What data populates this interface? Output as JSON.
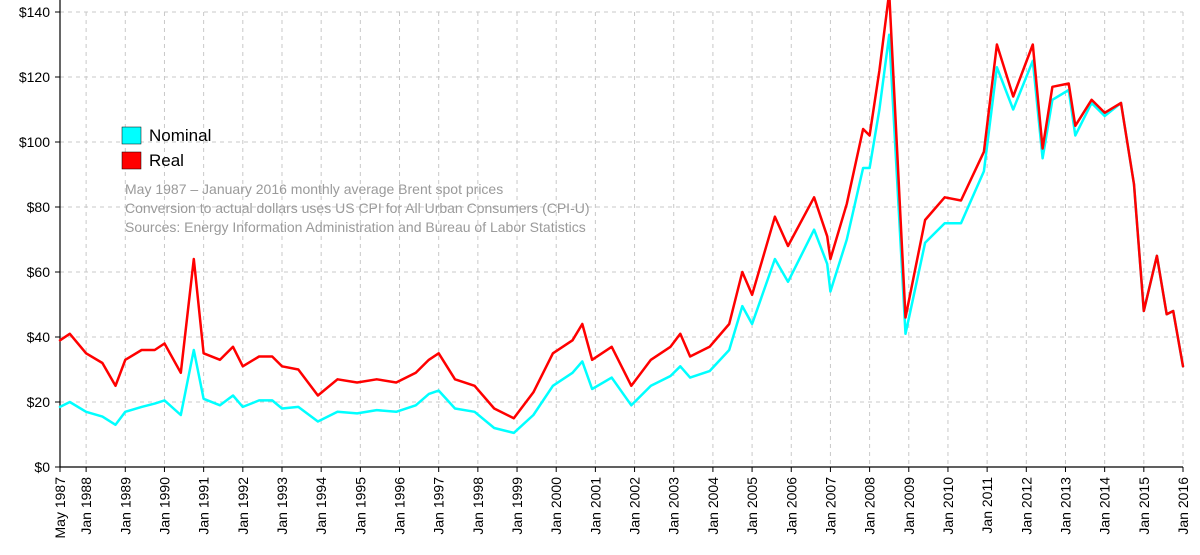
{
  "chart_data": {
    "type": "line",
    "title": "",
    "xlabel": "",
    "ylabel": "",
    "ylim": [
      0,
      140
    ],
    "xlim": [
      "1987-05",
      "2016-01"
    ],
    "grid": true,
    "y_ticks": [
      "$0",
      "$20",
      "$40",
      "$60",
      "$80",
      "$100",
      "$120",
      "$140"
    ],
    "y_tick_values": [
      0,
      20,
      40,
      60,
      80,
      100,
      120,
      140
    ],
    "x_ticks": [
      {
        "date": "1987-05",
        "label": "May 1987"
      },
      {
        "date": "1988-01",
        "label": "Jan 1988"
      },
      {
        "date": "1989-01",
        "label": "Jan 1989"
      },
      {
        "date": "1990-01",
        "label": "Jan 1990"
      },
      {
        "date": "1991-01",
        "label": "Jan 1991"
      },
      {
        "date": "1992-01",
        "label": "Jan 1992"
      },
      {
        "date": "1993-01",
        "label": "Jan 1993"
      },
      {
        "date": "1994-01",
        "label": "Jan 1994"
      },
      {
        "date": "1995-01",
        "label": "Jan 1995"
      },
      {
        "date": "1996-01",
        "label": "Jan 1996"
      },
      {
        "date": "1997-01",
        "label": "Jan 1997"
      },
      {
        "date": "1998-01",
        "label": "Jan 1998"
      },
      {
        "date": "1999-01",
        "label": "Jan 1999"
      },
      {
        "date": "2000-01",
        "label": "Jan 2000"
      },
      {
        "date": "2001-01",
        "label": "Jan 2001"
      },
      {
        "date": "2002-01",
        "label": "Jan 2002"
      },
      {
        "date": "2003-01",
        "label": "Jan 2003"
      },
      {
        "date": "2004-01",
        "label": "Jan 2004"
      },
      {
        "date": "2005-01",
        "label": "Jan 2005"
      },
      {
        "date": "2006-01",
        "label": "Jan 2006"
      },
      {
        "date": "2007-01",
        "label": "Jan 2007"
      },
      {
        "date": "2008-01",
        "label": "Jan 2008"
      },
      {
        "date": "2009-01",
        "label": "Jan 2009"
      },
      {
        "date": "2010-01",
        "label": "Jan 2010"
      },
      {
        "date": "2011-01",
        "label": "Jan 2011"
      },
      {
        "date": "2012-01",
        "label": "Jan 2012"
      },
      {
        "date": "2013-01",
        "label": "Jan 2013"
      },
      {
        "date": "2014-01",
        "label": "Jan 2014"
      },
      {
        "date": "2015-01",
        "label": "Jan 2015"
      },
      {
        "date": "2016-01",
        "label": "Jan 2016"
      }
    ],
    "legend": {
      "placement": "top-left",
      "entries": [
        {
          "name": "Nominal",
          "color": "#00ffff"
        },
        {
          "name": "Real",
          "color": "#ff0000"
        }
      ]
    },
    "annotations": [
      "May 1987 – January 2016 monthly average Brent spot prices",
      "Conversion to actual dollars uses US CPI for All Urban Consumers (CPI-U)",
      "Sources: Energy Information Administration and Bureau of Labor Statistics"
    ],
    "series": [
      {
        "name": "Nominal",
        "color": "#00ffff",
        "points": [
          [
            "1987-05",
            18.5
          ],
          [
            "1987-08",
            20.0
          ],
          [
            "1988-01",
            17.0
          ],
          [
            "1988-06",
            15.5
          ],
          [
            "1988-10",
            13.0
          ],
          [
            "1989-01",
            17.0
          ],
          [
            "1989-06",
            18.5
          ],
          [
            "1989-10",
            19.5
          ],
          [
            "1990-01",
            20.5
          ],
          [
            "1990-06",
            16.0
          ],
          [
            "1990-10",
            36.0
          ],
          [
            "1991-01",
            21.0
          ],
          [
            "1991-06",
            19.0
          ],
          [
            "1991-10",
            22.0
          ],
          [
            "1992-01",
            18.5
          ],
          [
            "1992-06",
            20.5
          ],
          [
            "1992-10",
            20.5
          ],
          [
            "1993-01",
            18.0
          ],
          [
            "1993-06",
            18.5
          ],
          [
            "1993-12",
            14.0
          ],
          [
            "1994-06",
            17.0
          ],
          [
            "1994-12",
            16.5
          ],
          [
            "1995-06",
            17.5
          ],
          [
            "1995-12",
            17.0
          ],
          [
            "1996-06",
            19.0
          ],
          [
            "1996-10",
            22.5
          ],
          [
            "1997-01",
            23.5
          ],
          [
            "1997-06",
            18.0
          ],
          [
            "1997-12",
            17.0
          ],
          [
            "1998-06",
            12.0
          ],
          [
            "1998-12",
            10.5
          ],
          [
            "1999-06",
            16.0
          ],
          [
            "1999-12",
            25.0
          ],
          [
            "2000-06",
            29.0
          ],
          [
            "2000-09",
            32.5
          ],
          [
            "2000-12",
            24.0
          ],
          [
            "2001-06",
            27.5
          ],
          [
            "2001-12",
            19.0
          ],
          [
            "2002-06",
            25.0
          ],
          [
            "2002-12",
            28.0
          ],
          [
            "2003-03",
            31.0
          ],
          [
            "2003-06",
            27.5
          ],
          [
            "2003-12",
            29.5
          ],
          [
            "2004-06",
            36.0
          ],
          [
            "2004-10",
            49.5
          ],
          [
            "2005-01",
            44.0
          ],
          [
            "2005-08",
            64.0
          ],
          [
            "2005-12",
            57.0
          ],
          [
            "2006-08",
            73.0
          ],
          [
            "2006-12",
            62.5
          ],
          [
            "2007-01",
            54.0
          ],
          [
            "2007-06",
            70.0
          ],
          [
            "2007-11",
            92.0
          ],
          [
            "2008-01",
            92.0
          ],
          [
            "2008-04",
            110.0
          ],
          [
            "2008-07",
            133.0
          ],
          [
            "2008-12",
            41.0
          ],
          [
            "2009-06",
            69.0
          ],
          [
            "2009-12",
            75.0
          ],
          [
            "2010-05",
            75.0
          ],
          [
            "2010-12",
            91.0
          ],
          [
            "2011-04",
            123.0
          ],
          [
            "2011-09",
            110.0
          ],
          [
            "2012-03",
            125.0
          ],
          [
            "2012-06",
            95.0
          ],
          [
            "2012-09",
            113.0
          ],
          [
            "2013-02",
            116.0
          ],
          [
            "2013-04",
            102.0
          ],
          [
            "2013-09",
            112.0
          ],
          [
            "2014-01",
            108.0
          ],
          [
            "2014-06",
            112.0
          ],
          [
            "2014-10",
            87.0
          ],
          [
            "2015-01",
            48.0
          ],
          [
            "2015-05",
            65.0
          ],
          [
            "2015-08",
            47.0
          ],
          [
            "2015-10",
            48.0
          ],
          [
            "2016-01",
            31.0
          ]
        ]
      },
      {
        "name": "Real",
        "color": "#ff0000",
        "points": [
          [
            "1987-05",
            39.0
          ],
          [
            "1987-08",
            41.0
          ],
          [
            "1988-01",
            35.0
          ],
          [
            "1988-06",
            32.0
          ],
          [
            "1988-10",
            25.0
          ],
          [
            "1989-01",
            33.0
          ],
          [
            "1989-06",
            36.0
          ],
          [
            "1989-10",
            36.0
          ],
          [
            "1990-01",
            38.0
          ],
          [
            "1990-06",
            29.0
          ],
          [
            "1990-10",
            64.0
          ],
          [
            "1991-01",
            35.0
          ],
          [
            "1991-06",
            33.0
          ],
          [
            "1991-10",
            37.0
          ],
          [
            "1992-01",
            31.0
          ],
          [
            "1992-06",
            34.0
          ],
          [
            "1992-10",
            34.0
          ],
          [
            "1993-01",
            31.0
          ],
          [
            "1993-06",
            30.0
          ],
          [
            "1993-12",
            22.0
          ],
          [
            "1994-06",
            27.0
          ],
          [
            "1994-12",
            26.0
          ],
          [
            "1995-06",
            27.0
          ],
          [
            "1995-12",
            26.0
          ],
          [
            "1996-06",
            29.0
          ],
          [
            "1996-10",
            33.0
          ],
          [
            "1997-01",
            35.0
          ],
          [
            "1997-06",
            27.0
          ],
          [
            "1997-12",
            25.0
          ],
          [
            "1998-06",
            18.0
          ],
          [
            "1998-12",
            15.0
          ],
          [
            "1999-06",
            23.0
          ],
          [
            "1999-12",
            35.0
          ],
          [
            "2000-06",
            39.0
          ],
          [
            "2000-09",
            44.0
          ],
          [
            "2000-12",
            33.0
          ],
          [
            "2001-06",
            37.0
          ],
          [
            "2001-12",
            25.0
          ],
          [
            "2002-06",
            33.0
          ],
          [
            "2002-12",
            37.0
          ],
          [
            "2003-03",
            41.0
          ],
          [
            "2003-06",
            34.0
          ],
          [
            "2003-12",
            37.0
          ],
          [
            "2004-06",
            44.0
          ],
          [
            "2004-10",
            60.0
          ],
          [
            "2005-01",
            53.0
          ],
          [
            "2005-08",
            77.0
          ],
          [
            "2005-12",
            68.0
          ],
          [
            "2006-08",
            83.0
          ],
          [
            "2006-12",
            71.0
          ],
          [
            "2007-01",
            64.0
          ],
          [
            "2007-06",
            81.0
          ],
          [
            "2007-11",
            104.0
          ],
          [
            "2008-01",
            102.0
          ],
          [
            "2008-04",
            122.0
          ],
          [
            "2008-07",
            146.0
          ],
          [
            "2008-12",
            46.0
          ],
          [
            "2009-06",
            76.0
          ],
          [
            "2009-12",
            83.0
          ],
          [
            "2010-05",
            82.0
          ],
          [
            "2010-12",
            97.0
          ],
          [
            "2011-04",
            130.0
          ],
          [
            "2011-09",
            114.0
          ],
          [
            "2012-03",
            130.0
          ],
          [
            "2012-06",
            98.0
          ],
          [
            "2012-09",
            117.0
          ],
          [
            "2013-02",
            118.0
          ],
          [
            "2013-04",
            105.0
          ],
          [
            "2013-09",
            113.0
          ],
          [
            "2014-01",
            109.0
          ],
          [
            "2014-06",
            112.0
          ],
          [
            "2014-10",
            87.0
          ],
          [
            "2015-01",
            48.0
          ],
          [
            "2015-05",
            65.0
          ],
          [
            "2015-08",
            47.0
          ],
          [
            "2015-10",
            48.0
          ],
          [
            "2016-01",
            31.0
          ]
        ]
      }
    ]
  }
}
